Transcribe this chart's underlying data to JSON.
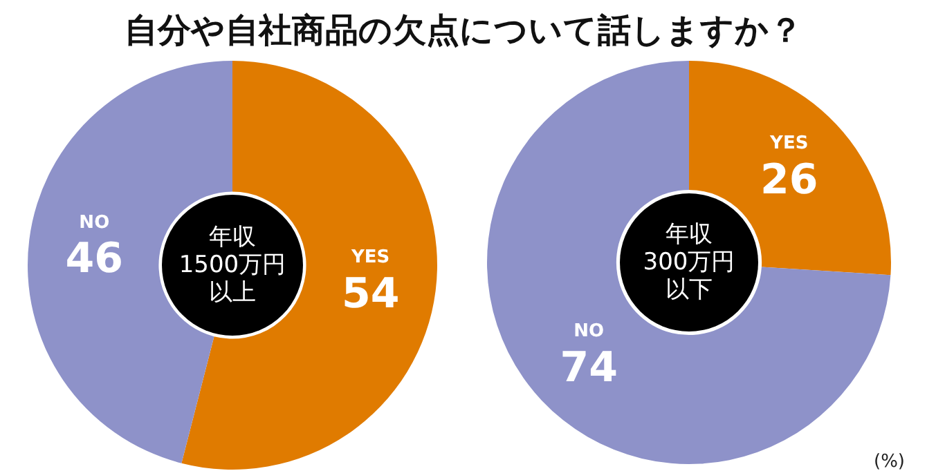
{
  "chart_data": [
    {
      "type": "donut",
      "title": "自分や自社商品の欠点について話しますか？",
      "subtitle": "年収1500万円以上",
      "categories": [
        "YES",
        "NO"
      ],
      "values": [
        54,
        46
      ],
      "colors": [
        "#e07b00",
        "#8e92c9"
      ],
      "data_labels": true,
      "legend": false
    },
    {
      "type": "donut",
      "subtitle": "年収300万円以下",
      "categories": [
        "YES",
        "NO"
      ],
      "values": [
        26,
        74
      ],
      "colors": [
        "#e07b00",
        "#8e92c9"
      ],
      "data_labels": true,
      "legend": false,
      "annotations": [
        "(%)"
      ]
    }
  ]
}
